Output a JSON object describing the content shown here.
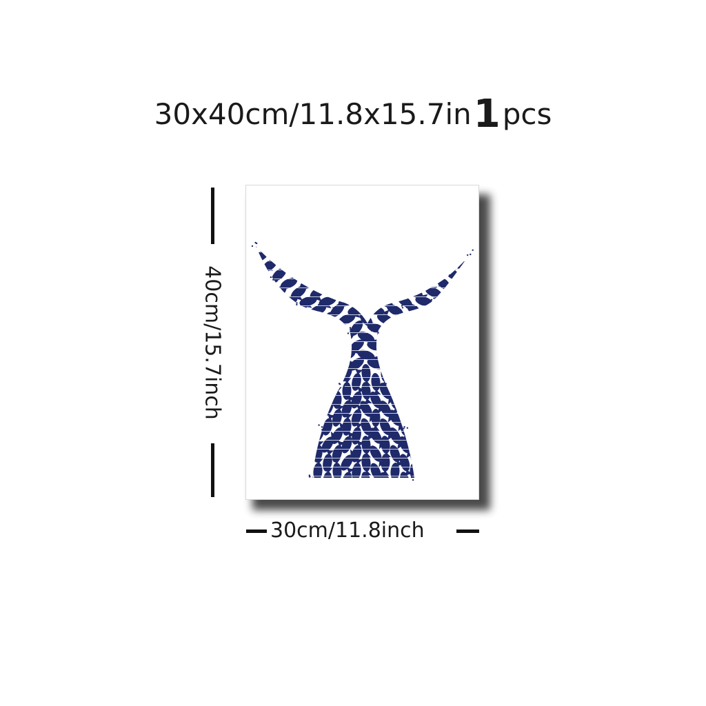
{
  "headline": {
    "size_text": "30x40cm/11.8x15.7in",
    "quantity": "1",
    "unit": "pcs"
  },
  "dimensions": {
    "height_label": "40cm/15.7inch",
    "width_label": "30cm/11.8inch"
  },
  "artwork": {
    "subject_icon": "whale-tail-of-fish-icon",
    "ink_color": "#1f2a6b"
  }
}
